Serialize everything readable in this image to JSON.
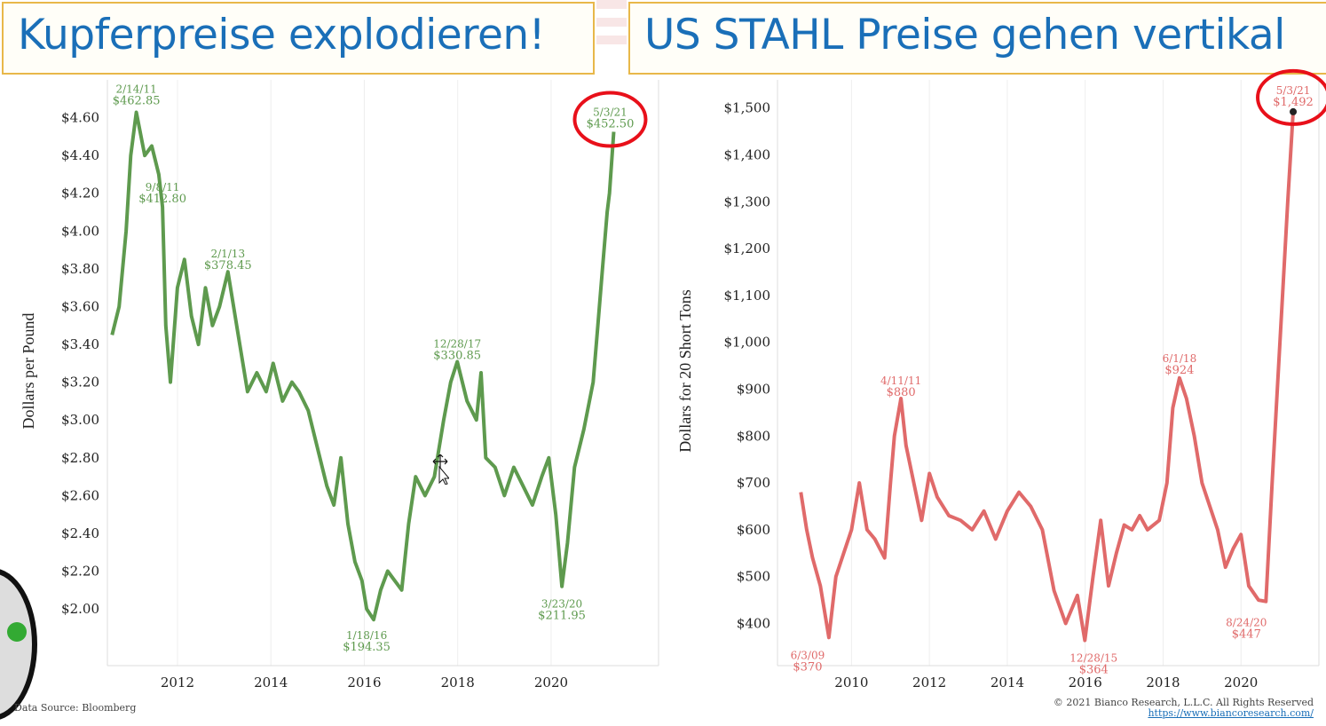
{
  "titles": {
    "left": "Kupferpreise explodieren!",
    "right": "US STAHL Preise gehen vertikal"
  },
  "footer": {
    "source": "Data Source: Bloomberg",
    "copyright": "© 2021 Bianco Research, L.L.C. All Rights Reserved",
    "url": "https://www.biancoresearch.com/"
  },
  "colors": {
    "copper": "#5e9a4e",
    "steel": "#e06a6a",
    "highlight": "#e8101a",
    "title": "#1a6fb8",
    "title_border": "#e8b84a"
  },
  "chart_data": [
    {
      "type": "line",
      "title": "Kupferpreise explodieren!",
      "ylabel": "Dollars per Pound",
      "xlabel": "",
      "xlim": [
        2010.5,
        2022.3
      ],
      "ylim": [
        1.7,
        4.8
      ],
      "yticks": [
        2.0,
        2.2,
        2.4,
        2.6,
        2.8,
        3.0,
        3.2,
        3.4,
        3.6,
        3.8,
        4.0,
        4.2,
        4.4,
        4.6
      ],
      "ytick_labels": [
        "$2.00",
        "$2.20",
        "$2.40",
        "$2.60",
        "$2.80",
        "$3.00",
        "$3.20",
        "$3.40",
        "$3.60",
        "$3.80",
        "$4.00",
        "$4.20",
        "$4.40",
        "$4.60"
      ],
      "xticks": [
        2012,
        2014,
        2016,
        2018,
        2020
      ],
      "xtick_labels": [
        "2012",
        "2014",
        "2016",
        "2018",
        "2020"
      ],
      "grid": "vertical",
      "series": [
        {
          "color": "#5e9a4e",
          "x": [
            2010.6,
            2010.75,
            2010.9,
            2011.0,
            2011.12,
            2011.3,
            2011.45,
            2011.6,
            2011.68,
            2011.75,
            2011.85,
            2012.0,
            2012.15,
            2012.3,
            2012.45,
            2012.6,
            2012.75,
            2012.9,
            2013.08,
            2013.3,
            2013.5,
            2013.7,
            2013.9,
            2014.05,
            2014.25,
            2014.45,
            2014.6,
            2014.8,
            2015.0,
            2015.2,
            2015.35,
            2015.5,
            2015.65,
            2015.8,
            2015.95,
            2016.05,
            2016.2,
            2016.35,
            2016.5,
            2016.65,
            2016.8,
            2016.95,
            2017.1,
            2017.3,
            2017.5,
            2017.7,
            2017.85,
            2017.99,
            2018.2,
            2018.4,
            2018.5,
            2018.6,
            2018.8,
            2019.0,
            2019.2,
            2019.4,
            2019.6,
            2019.8,
            2019.95,
            2020.1,
            2020.23,
            2020.35,
            2020.5,
            2020.7,
            2020.9,
            2021.0,
            2021.1,
            2021.2,
            2021.25,
            2021.34
          ],
          "y": [
            3.45,
            3.6,
            4.0,
            4.4,
            4.6285,
            4.4,
            4.45,
            4.3,
            4.128,
            3.5,
            3.2,
            3.7,
            3.85,
            3.55,
            3.4,
            3.7,
            3.5,
            3.6,
            3.7845,
            3.45,
            3.15,
            3.25,
            3.15,
            3.3,
            3.1,
            3.2,
            3.15,
            3.05,
            2.85,
            2.65,
            2.55,
            2.8,
            2.45,
            2.25,
            2.15,
            2.0,
            1.9435,
            2.1,
            2.2,
            2.15,
            2.1,
            2.45,
            2.7,
            2.6,
            2.7,
            3.0,
            3.2,
            3.3085,
            3.1,
            3.0,
            3.25,
            2.8,
            2.75,
            2.6,
            2.75,
            2.65,
            2.55,
            2.7,
            2.8,
            2.5,
            2.1195,
            2.35,
            2.75,
            2.95,
            3.2,
            3.5,
            3.8,
            4.1,
            4.2,
            4.525
          ]
        }
      ],
      "annotations": [
        {
          "date": "2/14/11",
          "value": "$462.85"
        },
        {
          "date": "9/8/11",
          "value": "$412.80"
        },
        {
          "date": "2/1/13",
          "value": "$378.45"
        },
        {
          "date": "1/18/16",
          "value": "$194.35"
        },
        {
          "date": "12/28/17",
          "value": "$330.85"
        },
        {
          "date": "3/23/20",
          "value": "$211.95"
        },
        {
          "date": "5/3/21",
          "value": "$452.50",
          "highlighted": true
        }
      ]
    },
    {
      "type": "line",
      "title": "US STAHL Preise gehen vertikal",
      "ylabel": "Dollars for 20 Short Tons",
      "xlabel": "",
      "xlim": [
        2008.1,
        2022.0
      ],
      "ylim": [
        310,
        1560
      ],
      "yticks": [
        400,
        500,
        600,
        700,
        800,
        900,
        1000,
        1100,
        1200,
        1300,
        1400,
        1500
      ],
      "ytick_labels": [
        "$400",
        "$500",
        "$600",
        "$700",
        "$800",
        "$900",
        "$1,000",
        "$1,100",
        "$1,200",
        "$1,300",
        "$1,400",
        "$1,500"
      ],
      "xticks": [
        2010,
        2012,
        2014,
        2016,
        2018,
        2020
      ],
      "xtick_labels": [
        "2010",
        "2012",
        "2014",
        "2016",
        "2018",
        "2020"
      ],
      "grid": "vertical",
      "series": [
        {
          "color": "#e06a6a",
          "x": [
            2008.7,
            2008.85,
            2009.0,
            2009.2,
            2009.42,
            2009.6,
            2009.8,
            2010.0,
            2010.2,
            2010.4,
            2010.6,
            2010.85,
            2011.0,
            2011.1,
            2011.27,
            2011.4,
            2011.6,
            2011.8,
            2012.0,
            2012.2,
            2012.5,
            2012.8,
            2013.1,
            2013.4,
            2013.7,
            2014.0,
            2014.3,
            2014.6,
            2014.9,
            2015.2,
            2015.5,
            2015.8,
            2015.99,
            2016.2,
            2016.4,
            2016.6,
            2016.8,
            2017.0,
            2017.2,
            2017.4,
            2017.6,
            2017.9,
            2018.1,
            2018.25,
            2018.42,
            2018.6,
            2018.8,
            2019.0,
            2019.2,
            2019.4,
            2019.6,
            2019.8,
            2020.0,
            2020.2,
            2020.45,
            2020.64,
            2020.8,
            2021.0,
            2021.2,
            2021.34
          ],
          "y": [
            680,
            600,
            540,
            480,
            370,
            500,
            550,
            600,
            700,
            600,
            580,
            540,
            700,
            800,
            880,
            780,
            700,
            620,
            720,
            670,
            630,
            620,
            600,
            640,
            580,
            640,
            680,
            650,
            600,
            470,
            400,
            460,
            364,
            500,
            620,
            480,
            550,
            610,
            600,
            630,
            600,
            620,
            700,
            860,
            924,
            880,
            800,
            700,
            650,
            600,
            520,
            560,
            590,
            480,
            450,
            447,
            700,
            1000,
            1300,
            1492
          ]
        }
      ],
      "annotations": [
        {
          "date": "6/3/09",
          "value": "$370"
        },
        {
          "date": "4/11/11",
          "value": "$880"
        },
        {
          "date": "12/28/15",
          "value": "$364"
        },
        {
          "date": "6/1/18",
          "value": "$924"
        },
        {
          "date": "8/24/20",
          "value": "$447"
        },
        {
          "date": "5/3/21",
          "value": "$1,492",
          "highlighted": true
        }
      ]
    }
  ]
}
